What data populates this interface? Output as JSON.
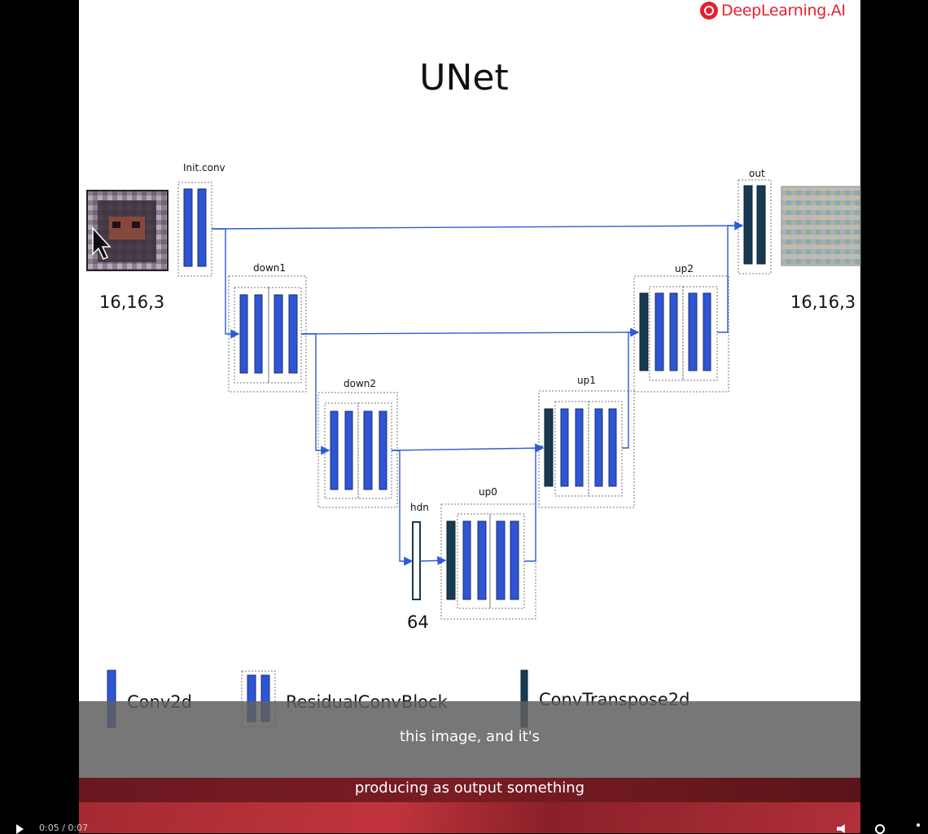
{
  "logo": {
    "text": "DeepLearning.AI"
  },
  "slide": {
    "title": "UNet"
  },
  "diagram": {
    "blocks": {
      "init_conv": "Init.conv",
      "down1": "down1",
      "down2": "down2",
      "hdn": "hdn",
      "up0": "up0",
      "up1": "up1",
      "up2": "up2",
      "out": "out"
    },
    "input_shape": "16,16,3",
    "output_shape": "16,16,3",
    "hidden_size": "64"
  },
  "legend": {
    "conv2d": "Conv2d",
    "residual": "ResidualConvBlock",
    "convtranspose": "ConvTranspose2d"
  },
  "captions": {
    "line1": "this image, and it's",
    "line2": "producing as output something"
  },
  "player": {
    "time": "0:05 / 0:07"
  },
  "colors": {
    "conv_blue": "#2f55d4",
    "transpose_navy": "#173a52",
    "arrow": "#2d5bd8",
    "brand_red": "#e5202e"
  }
}
